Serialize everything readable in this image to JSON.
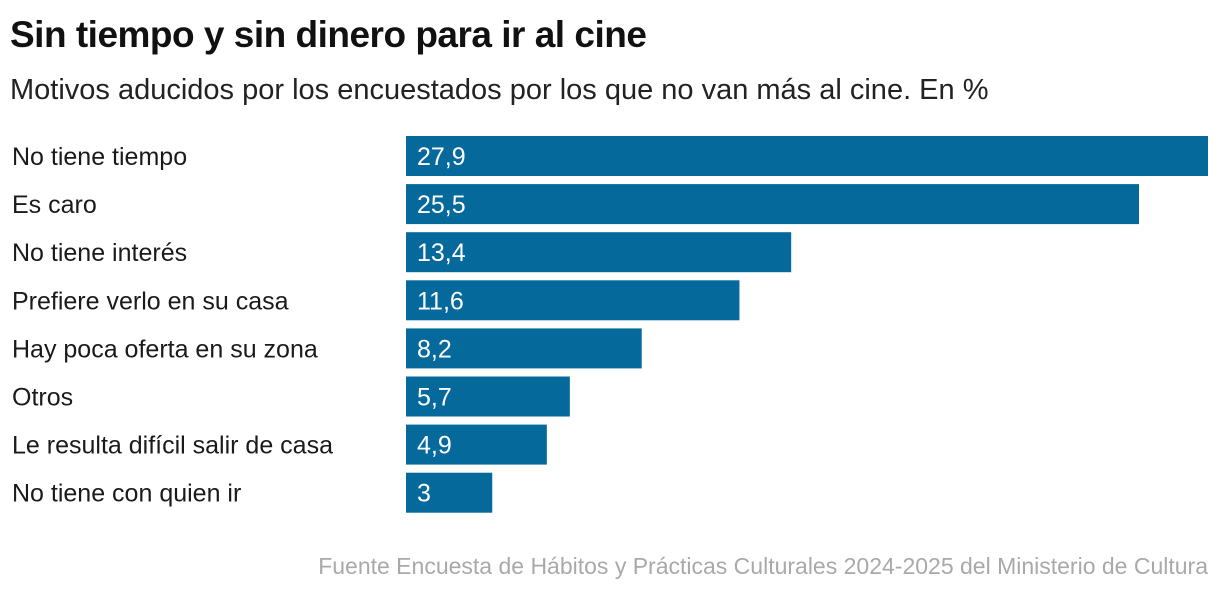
{
  "title": "Sin tiempo y sin dinero para ir al cine",
  "subtitle": "Motivos aducidos por los encuestados por los que no van más al cine. En %",
  "source": "Fuente Encuesta de Hábitos y Prácticas Culturales 2024-2025 del Ministerio de Cultura",
  "colors": {
    "bar": "#06699c"
  },
  "chart_data": {
    "type": "bar",
    "orientation": "horizontal",
    "categories": [
      "No tiene tiempo",
      "Es caro",
      "No tiene interés",
      "Prefiere verlo en su casa",
      "Hay poca oferta en su zona",
      "Otros",
      "Le resulta difícil salir de casa",
      "No tiene con quien ir"
    ],
    "values": [
      27.9,
      25.5,
      13.4,
      11.6,
      8.2,
      5.7,
      4.9,
      3
    ],
    "value_labels": [
      "27,9",
      "25,5",
      "13,4",
      "11,6",
      "8,2",
      "5,7",
      "4,9",
      "3"
    ],
    "xlim": [
      0,
      27.9
    ],
    "grid": false,
    "legend": "none"
  }
}
